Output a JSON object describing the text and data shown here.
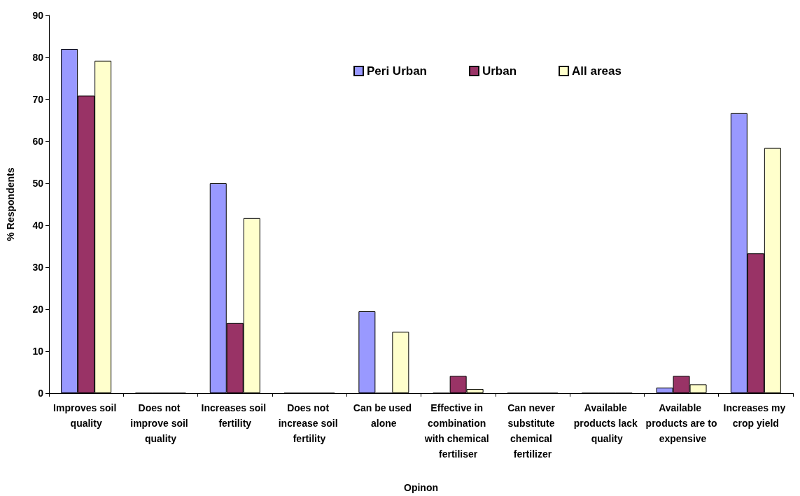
{
  "chart_data": {
    "type": "bar",
    "xlabel": "Opinon",
    "ylabel": "% Respondents",
    "categories": [
      "Improves soil quality",
      "Does not improve soil quality",
      "Increases soil fertility",
      "Does not increase soil fertility",
      "Can be used alone",
      "Effective in combination with chemical fertiliser",
      "Can never substitute chemical fertilizer",
      "Available products lack quality",
      "Available products are to expensive",
      "Increases my crop yield"
    ],
    "series": [
      {
        "name": "Peri Urban",
        "color": "#9999ff",
        "values": [
          82.0,
          0,
          50.0,
          0,
          19.5,
          0,
          0,
          0,
          1.3,
          66.7
        ]
      },
      {
        "name": "Urban",
        "color": "#993366",
        "values": [
          70.9,
          0,
          16.7,
          0,
          0,
          4.1,
          0,
          0,
          4.1,
          33.3
        ]
      },
      {
        "name": "All areas",
        "color": "#ffffcc",
        "values": [
          79.2,
          0,
          41.7,
          0,
          14.6,
          1.0,
          0,
          0,
          2.1,
          58.4
        ]
      }
    ],
    "ylim": [
      0,
      90
    ],
    "yticks": [
      0,
      10,
      20,
      30,
      40,
      50,
      60,
      70,
      80,
      90
    ],
    "grid": false,
    "legend": "top"
  }
}
